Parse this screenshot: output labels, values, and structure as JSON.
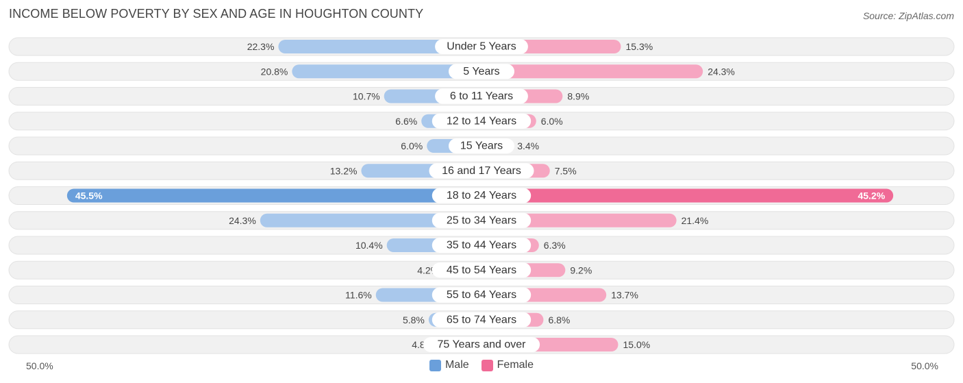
{
  "header": {
    "title": "INCOME BELOW POVERTY BY SEX AND AGE IN HOUGHTON COUNTY",
    "source": "Source: ZipAtlas.com"
  },
  "axis": {
    "left_label": "50.0%",
    "right_label": "50.0%"
  },
  "legend": {
    "male": "Male",
    "female": "Female"
  },
  "colors": {
    "male_strong": "#6a9fdb",
    "male_light": "#a9c8ec",
    "female_strong": "#f06a96",
    "female_light": "#f6a6c1",
    "track": "#f1f1f1",
    "track_border": "#e2e2e2"
  },
  "chart_data": {
    "type": "bar",
    "orientation": "horizontal-diverging",
    "title": "INCOME BELOW POVERTY BY SEX AND AGE IN HOUGHTON COUNTY",
    "xlim": [
      -50,
      50
    ],
    "categories": [
      "Under 5 Years",
      "5 Years",
      "6 to 11 Years",
      "12 to 14 Years",
      "15 Years",
      "16 and 17 Years",
      "18 to 24 Years",
      "25 to 34 Years",
      "35 to 44 Years",
      "45 to 54 Years",
      "55 to 64 Years",
      "65 to 74 Years",
      "75 Years and over"
    ],
    "series": [
      {
        "name": "Male",
        "values": [
          22.3,
          20.8,
          10.7,
          6.6,
          6.0,
          13.2,
          45.5,
          24.3,
          10.4,
          4.2,
          11.6,
          5.8,
          4.8
        ],
        "labels": [
          "22.3%",
          "20.8%",
          "10.7%",
          "6.6%",
          "6.0%",
          "13.2%",
          "45.5%",
          "24.3%",
          "10.4%",
          "4.2%",
          "11.6%",
          "5.8%",
          "4.8%"
        ]
      },
      {
        "name": "Female",
        "values": [
          15.3,
          24.3,
          8.9,
          6.0,
          3.4,
          7.5,
          45.2,
          21.4,
          6.3,
          9.2,
          13.7,
          6.8,
          15.0
        ],
        "labels": [
          "15.3%",
          "24.3%",
          "8.9%",
          "6.0%",
          "3.4%",
          "7.5%",
          "45.2%",
          "21.4%",
          "6.3%",
          "9.2%",
          "13.7%",
          "6.8%",
          "15.0%"
        ]
      }
    ]
  }
}
